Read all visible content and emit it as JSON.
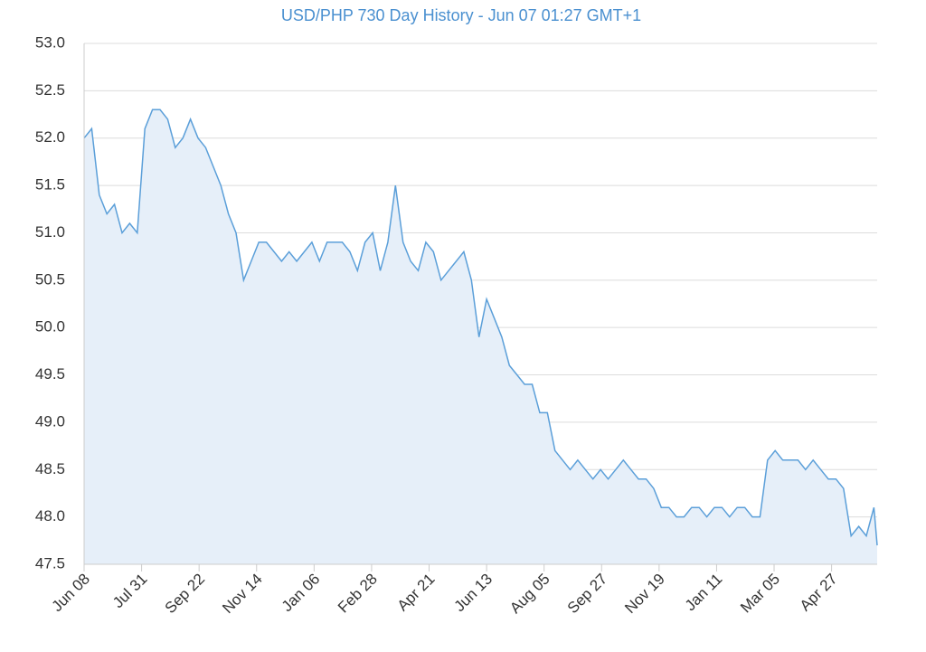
{
  "chart_data": {
    "type": "area",
    "title": "USD/PHP 730 Day History - Jun 07 01:27 GMT+1",
    "x": [
      0,
      7,
      14,
      21,
      28,
      35,
      42,
      49,
      56,
      63,
      70,
      77,
      84,
      91,
      98,
      105,
      112,
      119,
      126,
      133,
      140,
      147,
      154,
      161,
      168,
      175,
      182,
      189,
      196,
      203,
      210,
      217,
      224,
      231,
      238,
      245,
      252,
      259,
      266,
      273,
      280,
      287,
      294,
      301,
      308,
      315,
      322,
      329,
      336,
      343,
      350,
      357,
      364,
      371,
      378,
      385,
      392,
      399,
      406,
      413,
      420,
      427,
      434,
      441,
      448,
      455,
      462,
      469,
      476,
      483,
      490,
      497,
      504,
      511,
      518,
      525,
      532,
      539,
      546,
      553,
      560,
      567,
      574,
      581,
      588,
      595,
      602,
      609,
      616,
      623,
      630,
      637,
      644,
      651,
      658,
      665,
      672,
      679,
      686,
      693,
      700,
      707,
      714,
      721,
      728,
      731
    ],
    "values": [
      52.0,
      52.1,
      51.4,
      51.2,
      51.3,
      51.0,
      51.1,
      51.0,
      52.1,
      52.3,
      52.3,
      52.2,
      51.9,
      52.0,
      52.2,
      52.0,
      51.9,
      51.7,
      51.5,
      51.2,
      51.0,
      50.5,
      50.7,
      50.9,
      50.9,
      50.8,
      50.7,
      50.8,
      50.7,
      50.8,
      50.9,
      50.7,
      50.9,
      50.9,
      50.9,
      50.8,
      50.6,
      50.9,
      51.0,
      50.6,
      50.9,
      51.5,
      50.9,
      50.7,
      50.6,
      50.9,
      50.8,
      50.5,
      50.6,
      50.7,
      50.8,
      50.5,
      49.9,
      50.3,
      50.1,
      49.9,
      49.6,
      49.5,
      49.4,
      49.4,
      49.1,
      49.1,
      48.7,
      48.6,
      48.5,
      48.6,
      48.5,
      48.4,
      48.5,
      48.4,
      48.5,
      48.6,
      48.5,
      48.4,
      48.4,
      48.3,
      48.1,
      48.1,
      48.0,
      48.0,
      48.1,
      48.1,
      48.0,
      48.1,
      48.1,
      48.0,
      48.1,
      48.1,
      48.0,
      48.0,
      48.6,
      48.7,
      48.6,
      48.6,
      48.6,
      48.5,
      48.6,
      48.5,
      48.4,
      48.4,
      48.3,
      47.8,
      47.9,
      47.8,
      48.1,
      47.7
    ],
    "color": "#5b9fd9",
    "fill": "#e6eff9",
    "xlim": [
      0,
      731
    ],
    "xticks": [
      {
        "value": 0,
        "label": "Jun 08"
      },
      {
        "value": 53,
        "label": "Jul 31"
      },
      {
        "value": 106,
        "label": "Sep 22"
      },
      {
        "value": 159,
        "label": "Nov 14"
      },
      {
        "value": 212,
        "label": "Jan 06"
      },
      {
        "value": 265,
        "label": "Feb 28"
      },
      {
        "value": 318,
        "label": "Apr 21"
      },
      {
        "value": 371,
        "label": "Jun 13"
      },
      {
        "value": 424,
        "label": "Aug 05"
      },
      {
        "value": 477,
        "label": "Sep 27"
      },
      {
        "value": 530,
        "label": "Nov 19"
      },
      {
        "value": 583,
        "label": "Jan 11"
      },
      {
        "value": 636,
        "label": "Mar 05"
      },
      {
        "value": 689,
        "label": "Apr 27"
      }
    ],
    "ylim": [
      47.5,
      53.0
    ],
    "yticks": [
      47.5,
      {
        "value": 48,
        "label": "48.0"
      },
      48.5,
      {
        "value": 49,
        "label": "49.0"
      },
      49.5,
      {
        "value": 50,
        "label": "50.0"
      },
      50.5,
      {
        "value": 51,
        "label": "51.0"
      },
      51.5,
      {
        "value": 52,
        "label": "52.0"
      },
      52.5,
      {
        "value": 53,
        "label": "53.0"
      }
    ],
    "grid": true
  }
}
